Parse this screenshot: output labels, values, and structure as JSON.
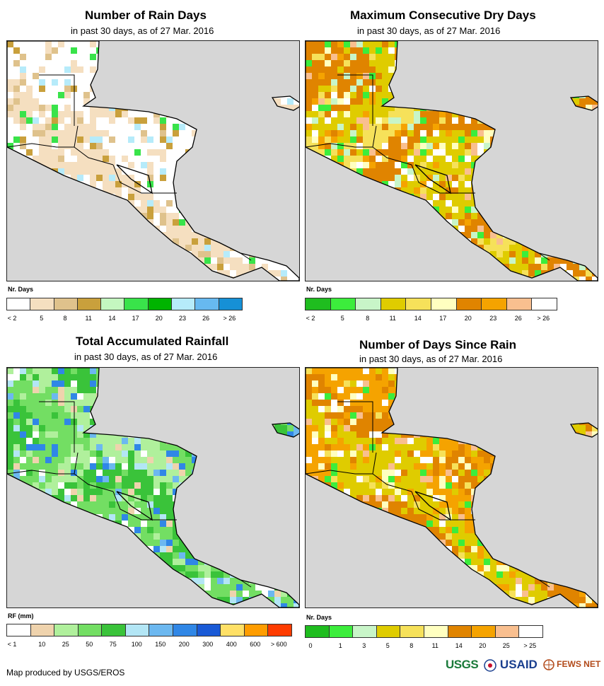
{
  "panels": [
    {
      "key": "rain_days",
      "title": "Number of Rain Days",
      "subtitle": "in past 30 days, as of 27 Mar. 2016",
      "legend_title": "Nr. Days",
      "legend_colors": [
        "#ffffff",
        "#f5dfc0",
        "#dfc28c",
        "#c9a03c",
        "#c4f7c0",
        "#39e34a",
        "#00b400",
        "#b6ebfa",
        "#67b9f0",
        "#1690d6"
      ],
      "legend_labels": [
        "< 2",
        "5",
        "8",
        "11",
        "14",
        "17",
        "20",
        "23",
        "26",
        "> 26"
      ],
      "map_palette": [
        "#ffffff",
        "#ffffff",
        "#f5dfc0",
        "#f5dfc0",
        "#dfc28c",
        "#ffffff",
        "#b6ebfa",
        "#39e34a",
        "#c9a03c"
      ]
    },
    {
      "key": "max_dry_days",
      "title": "Maximum Consecutive Dry Days",
      "subtitle": "in past 30 days, as of 27 Mar. 2016",
      "legend_title": "Nr. Days",
      "legend_colors": [
        "#1fbd1f",
        "#3ced3c",
        "#c8f5c8",
        "#dfcc00",
        "#f6e15a",
        "#ffffc0",
        "#e08400",
        "#f5a300",
        "#f9bf8f",
        "#ffffff"
      ],
      "legend_labels": [
        "< 2",
        "5",
        "8",
        "11",
        "14",
        "17",
        "20",
        "23",
        "26",
        "> 26"
      ],
      "map_palette": [
        "#dfcc00",
        "#e08400",
        "#f6e15a",
        "#f5a300",
        "#ffffc0",
        "#ffffff",
        "#c8f5c8",
        "#3ced3c",
        "#f9bf8f"
      ]
    },
    {
      "key": "total_rainfall",
      "title": "Total Accumulated Rainfall",
      "subtitle": "in past 30 days, as of 27 Mar. 2016",
      "legend_title": "RF (mm)",
      "legend_colors": [
        "#ffffff",
        "#efd3ad",
        "#b0f09c",
        "#73de63",
        "#3ac33a",
        "#b3e6f5",
        "#6cb8f0",
        "#3087e6",
        "#1a5ad6",
        "#ffe066",
        "#ff9d00",
        "#ff3c00"
      ],
      "legend_labels": [
        "< 1",
        "10",
        "25",
        "50",
        "75",
        "100",
        "150",
        "200",
        "300",
        "400",
        "600",
        "> 600"
      ],
      "map_palette": [
        "#73de63",
        "#3ac33a",
        "#b0f09c",
        "#efd3ad",
        "#ffffff",
        "#6cb8f0",
        "#3087e6",
        "#b3e6f5",
        "#73de63"
      ]
    },
    {
      "key": "days_since_rain",
      "title": "Number of Days Since Rain",
      "subtitle": "in past 30 days, as of 27 Mar. 2016",
      "legend_title": "Nr. Days",
      "legend_colors": [
        "#1fbd1f",
        "#3ced3c",
        "#c8f5c8",
        "#dfcc00",
        "#f6e15a",
        "#ffffc0",
        "#e08400",
        "#f5a300",
        "#f9bf8f",
        "#ffffff"
      ],
      "legend_labels": [
        "0",
        "1",
        "3",
        "5",
        "8",
        "11",
        "14",
        "20",
        "25",
        "> 25"
      ],
      "map_palette": [
        "#f5a300",
        "#e08400",
        "#dfcc00",
        "#f6e15a",
        "#f9bf8f",
        "#ffffff",
        "#ffffc0",
        "#3ced3c",
        "#f5a300"
      ]
    }
  ],
  "footer": "Map produced by USGS/EROS",
  "logos": [
    "USGS",
    "USAID",
    "FEWS NET"
  ],
  "ocean_color": "#d6d6d6",
  "border_color": "#000000"
}
